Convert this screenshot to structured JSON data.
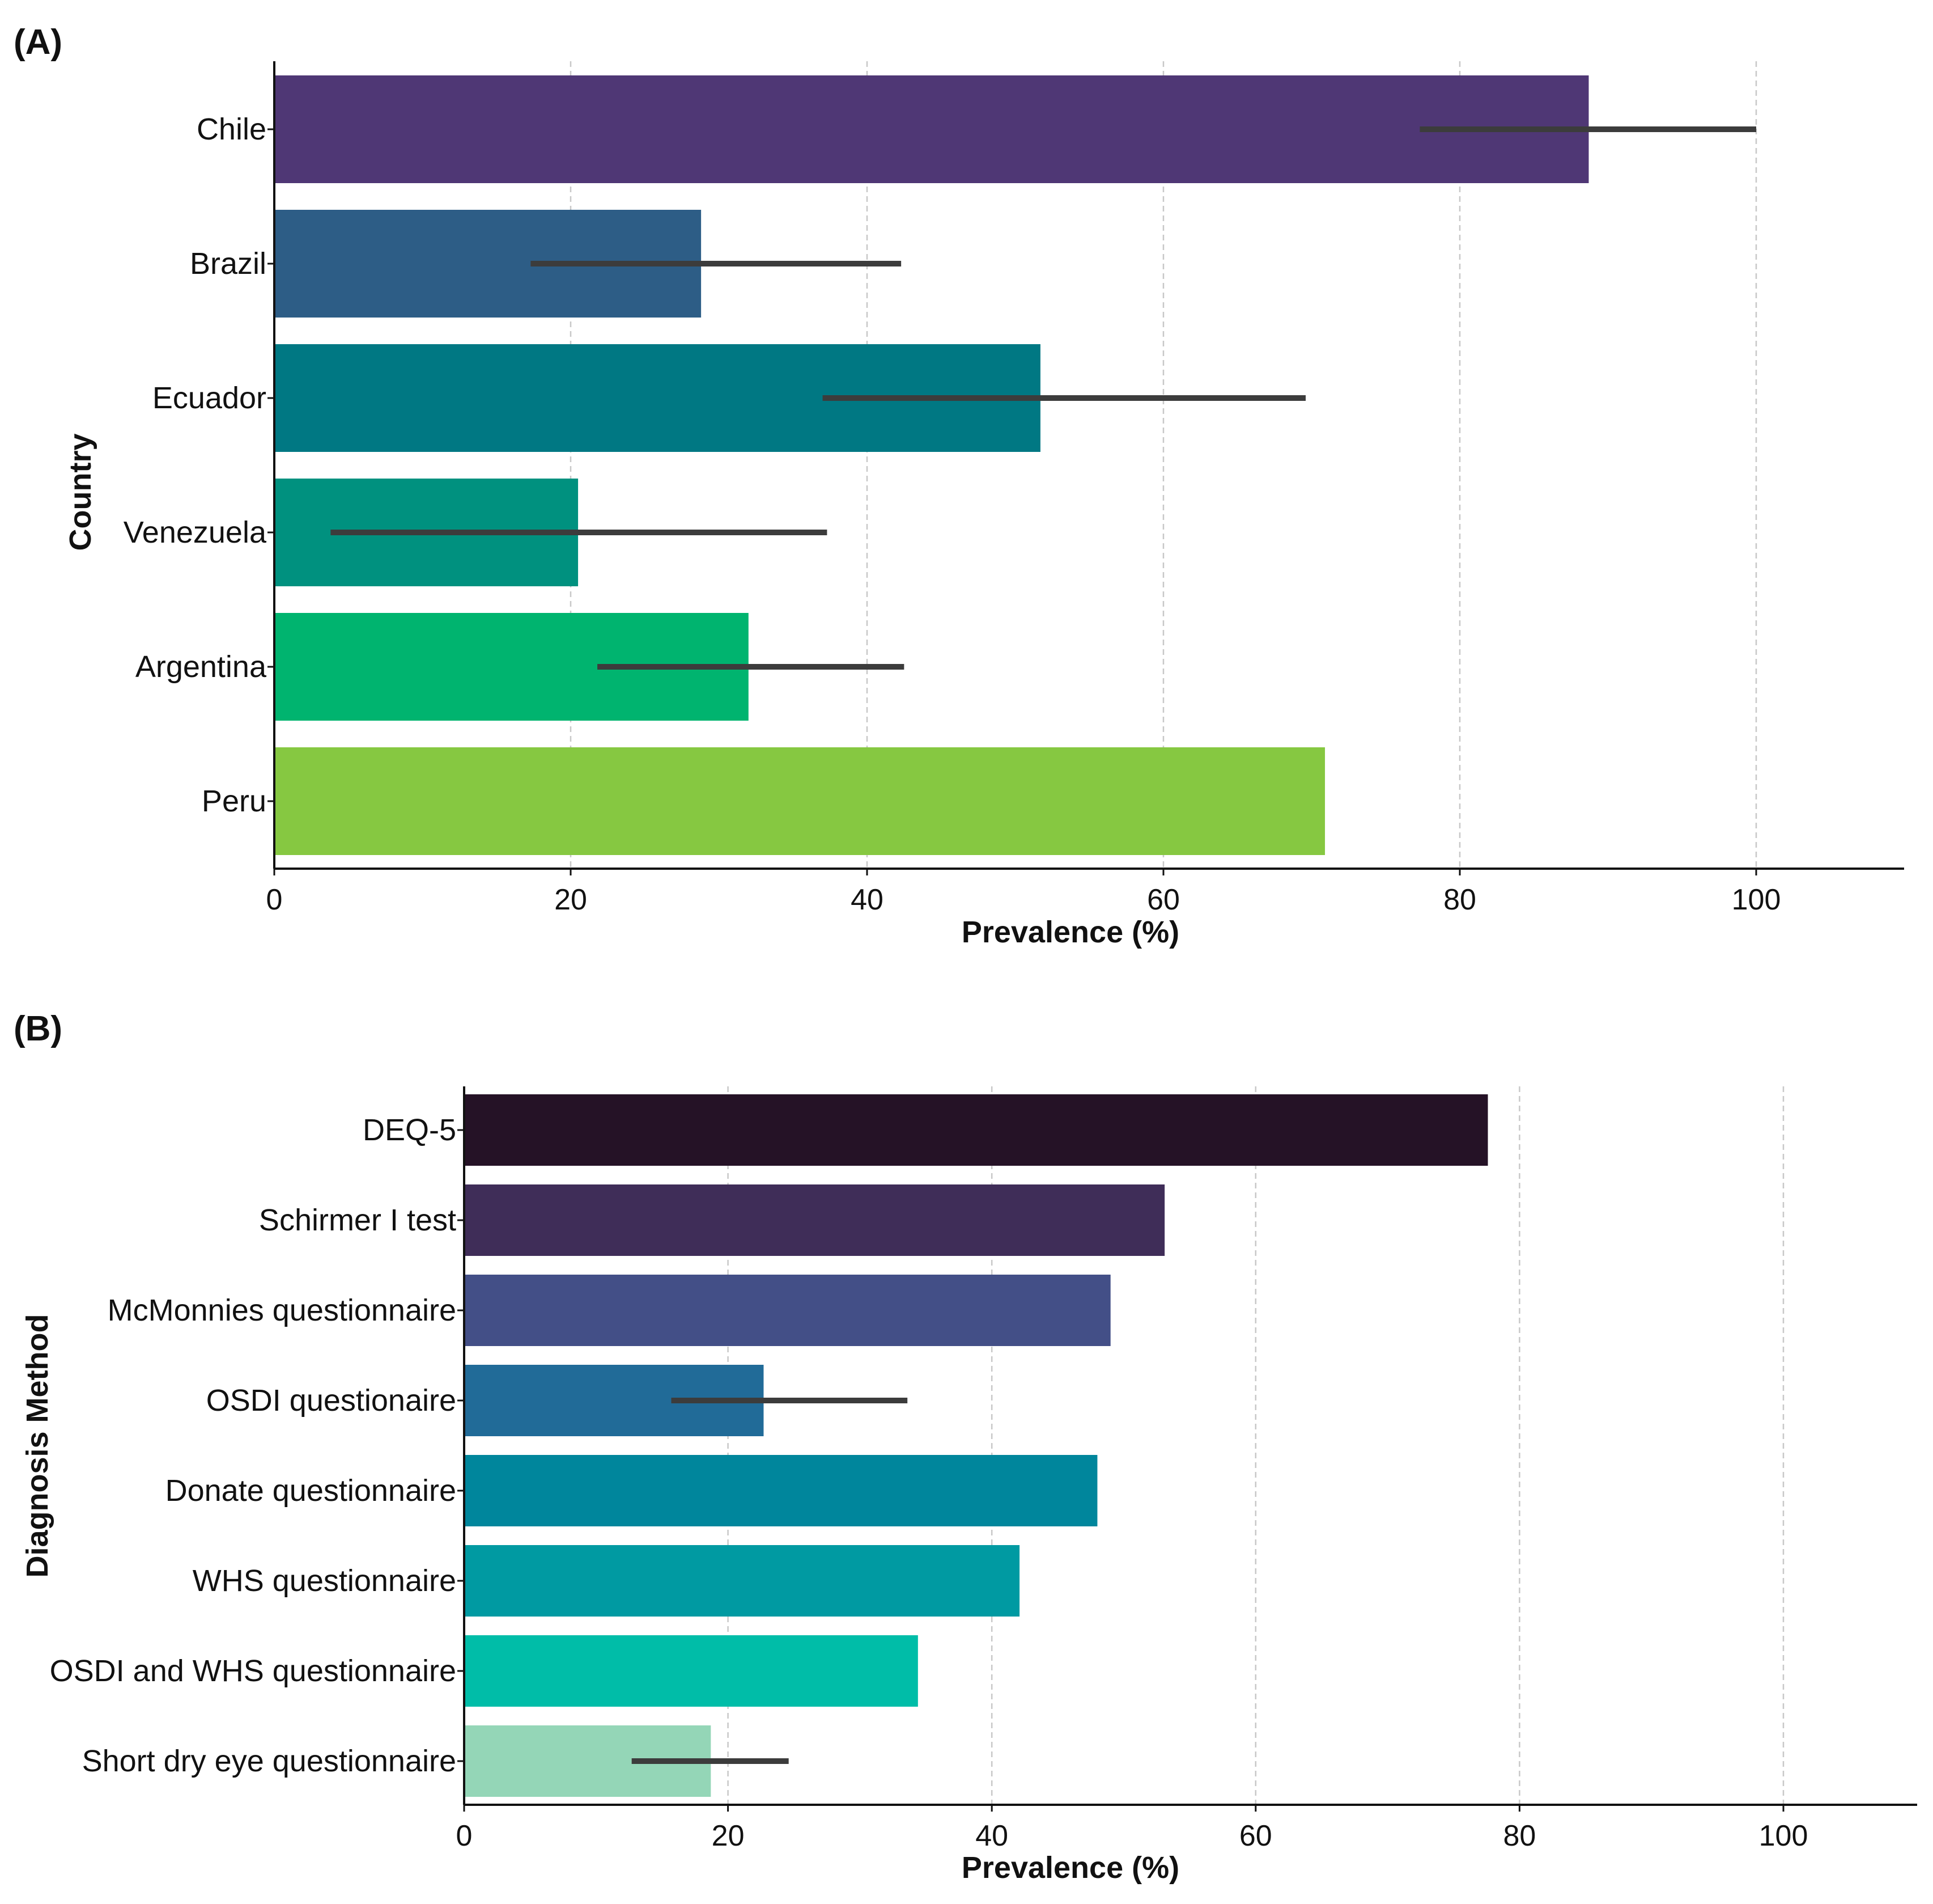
{
  "chart_data": [
    {
      "type": "bar",
      "orientation": "horizontal",
      "panel_label": "(A)",
      "xlabel": "Prevalence (%)",
      "ylabel": "Country",
      "xlim": [
        0,
        110
      ],
      "xticks": [
        0,
        20,
        40,
        60,
        80,
        100
      ],
      "grid": "vertical dashed",
      "categories": [
        "Chile",
        "Brazil",
        "Ecuador",
        "Venezuela",
        "Argentina",
        "Peru"
      ],
      "values": [
        88.7,
        28.8,
        51.7,
        20.5,
        32.0,
        70.9
      ],
      "error_low": [
        77.3,
        17.3,
        37.0,
        3.8,
        21.8,
        null
      ],
      "error_high": [
        100.0,
        42.3,
        69.6,
        37.3,
        42.5,
        null
      ],
      "colors": [
        "#4f3775",
        "#2d5d86",
        "#007883",
        "#00917f",
        "#00b46f",
        "#86c841"
      ]
    },
    {
      "type": "bar",
      "orientation": "horizontal",
      "panel_label": "(B)",
      "xlabel": "Prevalence (%)",
      "ylabel": "Diagnosis Method",
      "xlim": [
        0,
        110
      ],
      "xticks": [
        0,
        20,
        40,
        60,
        80,
        100
      ],
      "grid": "vertical dashed",
      "categories": [
        "DEQ-5",
        "Schirmer I test",
        "McMonnies questionnaire",
        "OSDI questionaire",
        "Donate questionnaire",
        "WHS questionnaire",
        "OSDI and WHS questionnaire",
        "Short dry eye questionnaire"
      ],
      "values": [
        77.6,
        53.1,
        49.0,
        22.7,
        48.0,
        42.1,
        34.4,
        18.7
      ],
      "error_low": [
        null,
        null,
        null,
        15.7,
        null,
        null,
        null,
        12.7
      ],
      "error_high": [
        null,
        null,
        null,
        33.6,
        null,
        null,
        null,
        24.6
      ],
      "colors": [
        "#251226",
        "#3f2d58",
        "#434f87",
        "#216b98",
        "#00869c",
        "#009aa2",
        "#00bda8",
        "#94d6b7"
      ]
    }
  ]
}
